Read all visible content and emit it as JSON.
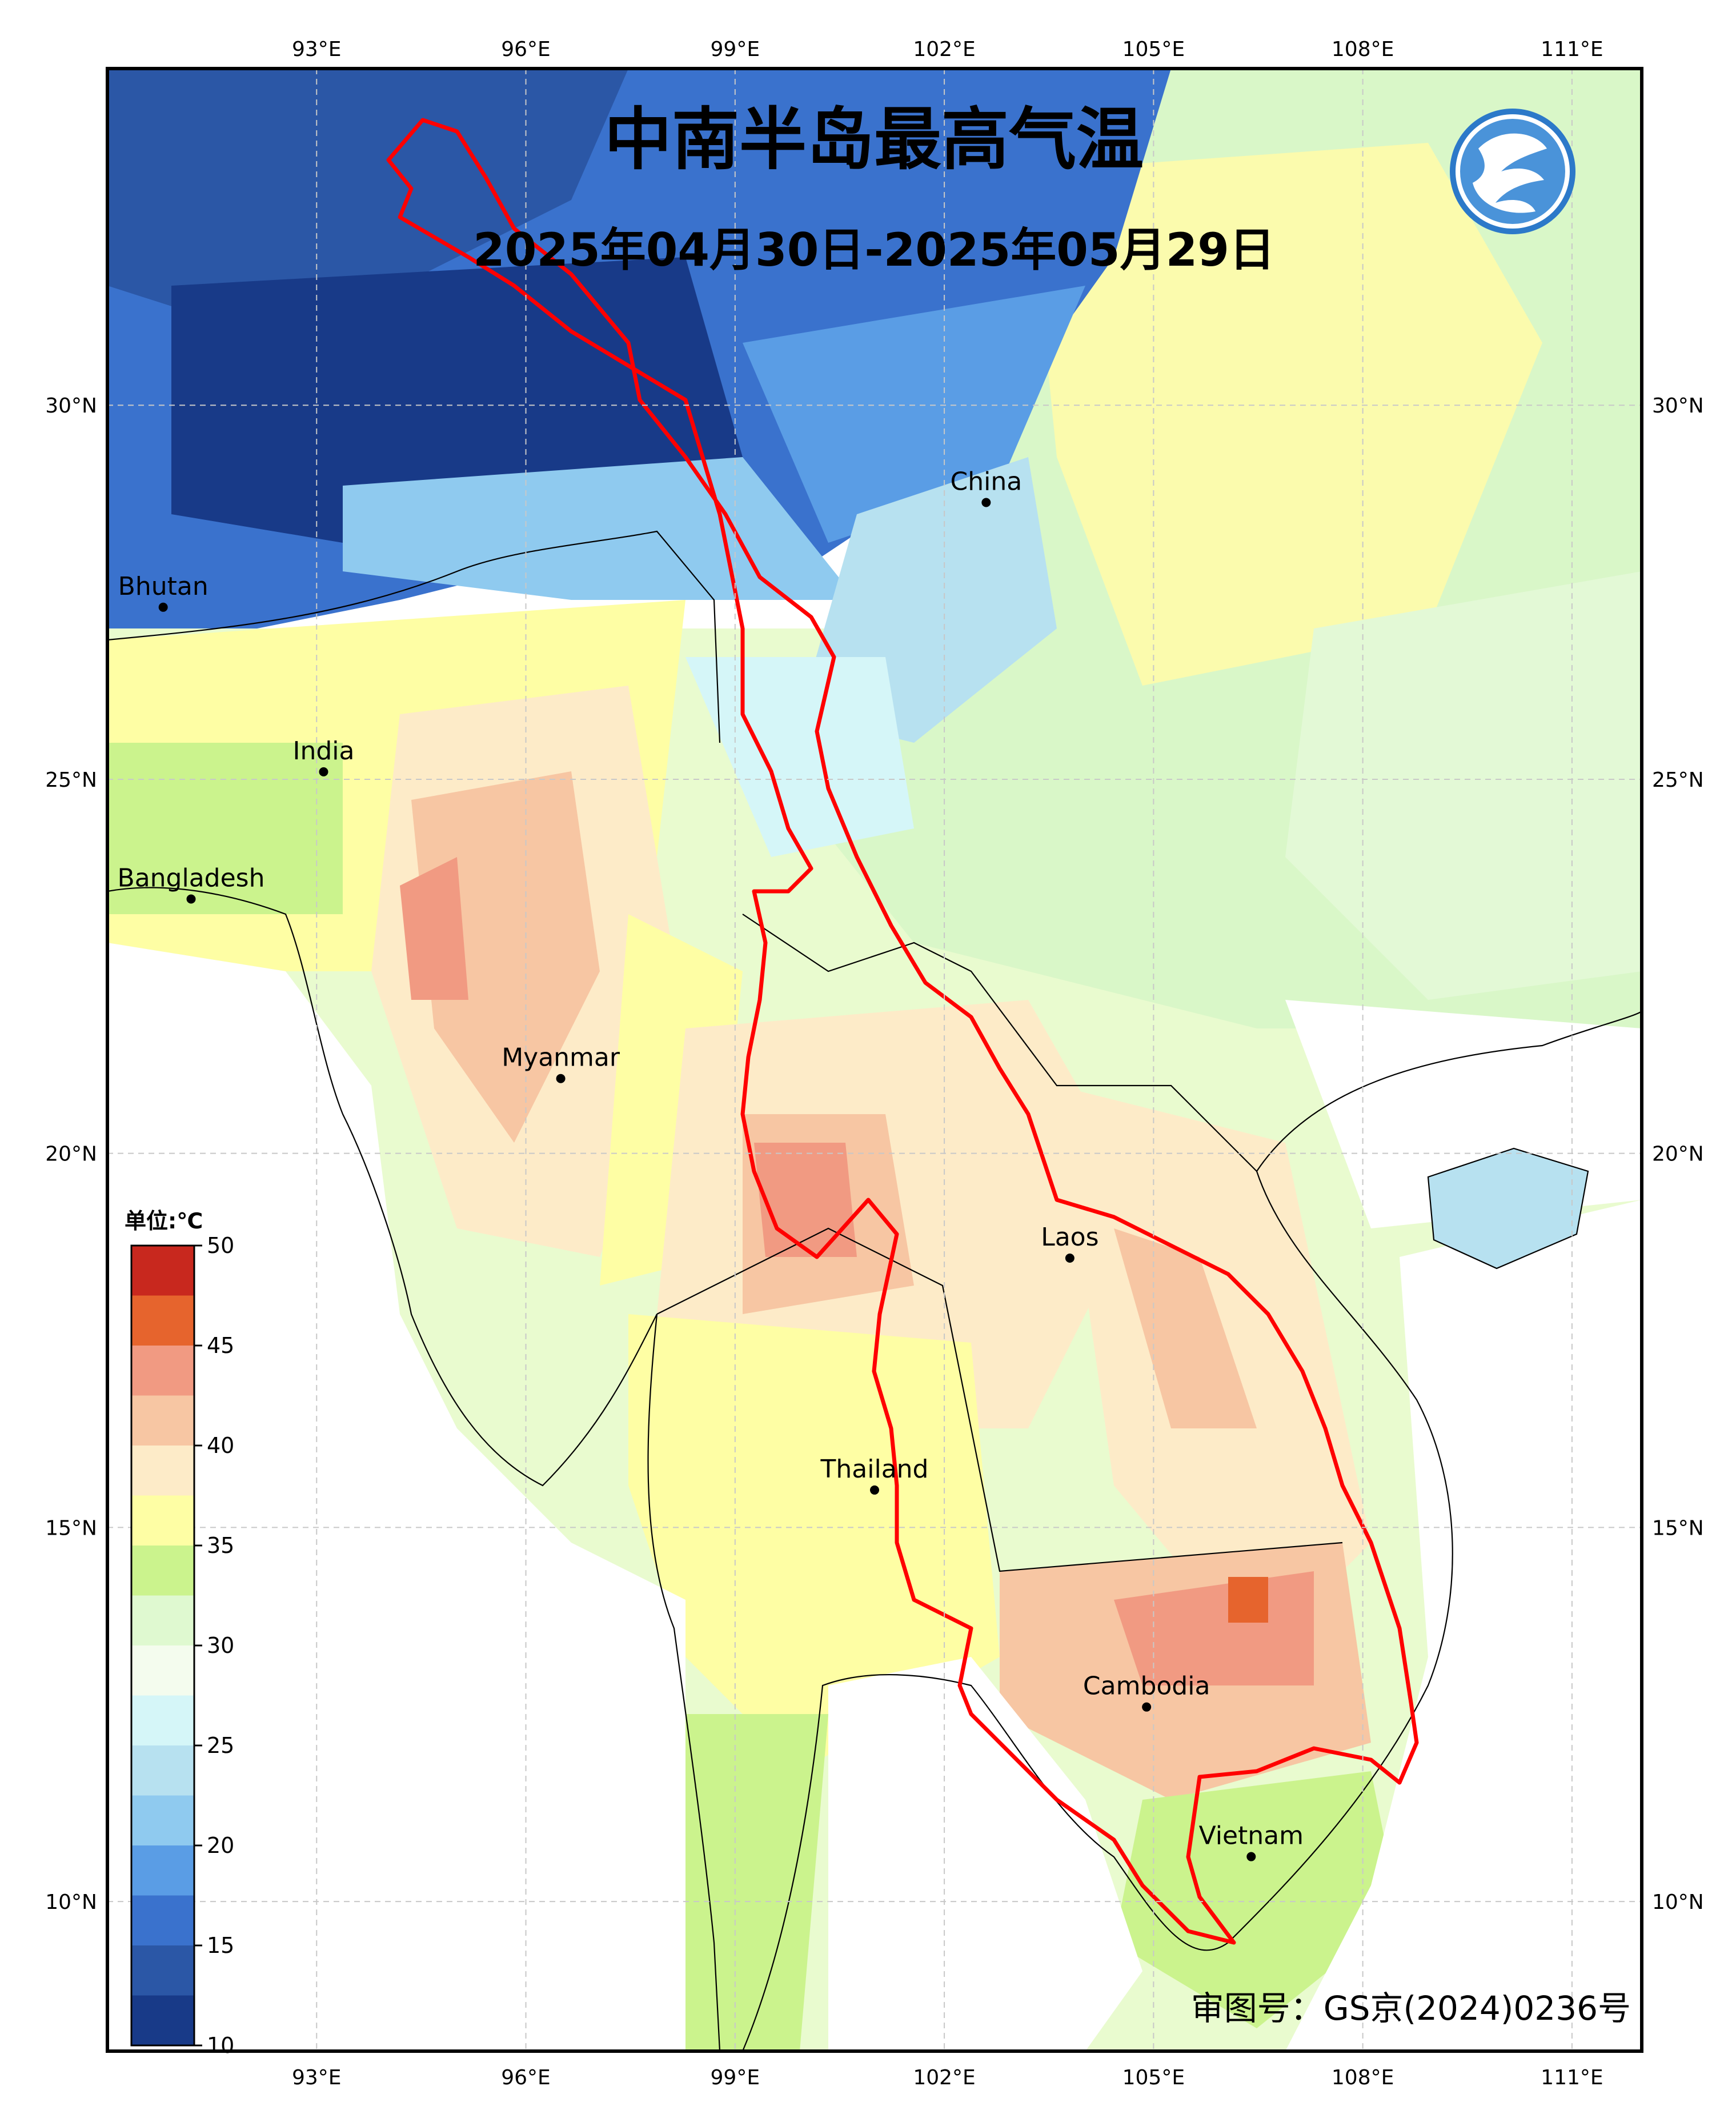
{
  "title": "中南半岛最高气温",
  "subtitle": "2025年04月30日-2025年05月29日",
  "approval_number": "审图号：GS京(2024)0236号",
  "logo_icon": "cma-logo-icon",
  "colorbar": {
    "unit_label": "单位:℃",
    "ticks": [
      "50",
      "45",
      "40",
      "35",
      "30",
      "25",
      "20",
      "15",
      "10"
    ],
    "colors": [
      "#c8281e",
      "#e6642d",
      "#f19a82",
      "#f7c6a3",
      "#fdebc8",
      "#fefea4",
      "#cbf38d",
      "#dff9d0",
      "#f4fcee",
      "#d5f6f8",
      "#b7e1f0",
      "#8fcaef",
      "#5a9de5",
      "#3a72cd",
      "#2b57a6",
      "#183a88"
    ]
  },
  "axes": {
    "lon_labels": [
      "93°E",
      "96°E",
      "99°E",
      "102°E",
      "105°E",
      "108°E",
      "111°E"
    ],
    "lat_labels": [
      "30°N",
      "25°N",
      "20°N",
      "15°N",
      "10°N"
    ],
    "lon_range": [
      90,
      112
    ],
    "lat_range": [
      8,
      34.5
    ],
    "grid": true
  },
  "places": [
    {
      "name": "China",
      "lon": 102.6,
      "lat": 28.7
    },
    {
      "name": "Bhutan",
      "lon": 90.8,
      "lat": 27.3
    },
    {
      "name": "India",
      "lon": 93.1,
      "lat": 25.1
    },
    {
      "name": "Bangladesh",
      "lon": 91.2,
      "lat": 23.4
    },
    {
      "name": "Myanmar",
      "lon": 96.5,
      "lat": 21.0
    },
    {
      "name": "Laos",
      "lon": 103.8,
      "lat": 18.6
    },
    {
      "name": "Thailand",
      "lon": 101.0,
      "lat": 15.5
    },
    {
      "name": "Cambodia",
      "lon": 104.9,
      "lat": 12.6
    },
    {
      "name": "Vietnam",
      "lon": 106.4,
      "lat": 10.6
    }
  ]
}
